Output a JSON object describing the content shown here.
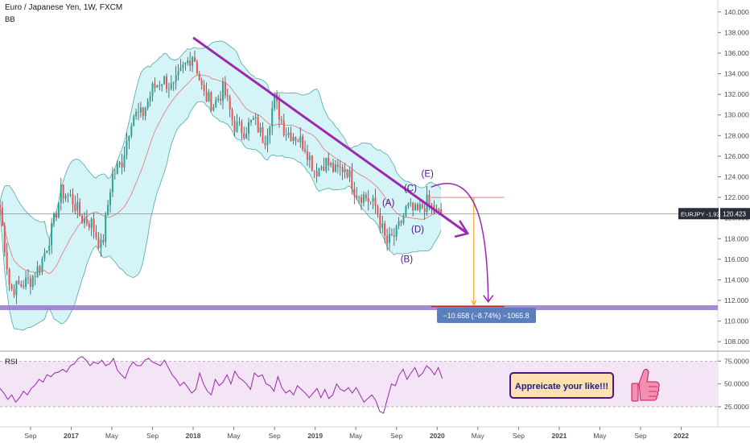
{
  "header": {
    "title": "Euro / Japanese Yen, 1W, FXCM",
    "indicator_bb": "BB",
    "indicator_rsi": "RSI"
  },
  "chart_data": [
    {
      "type": "candlestick",
      "title": "Euro / Japanese Yen, 1W, FXCM",
      "ylim": [
        107.0,
        141.0
      ],
      "y_ticks": [
        "140.000",
        "138.000",
        "136.000",
        "134.000",
        "132.000",
        "130.000",
        "128.000",
        "126.000",
        "124.000",
        "122.000",
        "120.000",
        "118.000",
        "116.000",
        "114.000",
        "112.000",
        "110.000",
        "108.000"
      ],
      "x_ticks": [
        "Sep",
        "2017",
        "May",
        "Sep",
        "2018",
        "May",
        "Sep",
        "2019",
        "May",
        "Sep",
        "2020",
        "May",
        "Sep",
        "2021",
        "May",
        "Sep",
        "2022"
      ],
      "close_series": [
        {
          "x": "2016-06",
          "y": 121.0
        },
        {
          "x": "2016-07",
          "y": 113.0
        },
        {
          "x": "2016-08",
          "y": 113.5
        },
        {
          "x": "2016-09",
          "y": 114.0
        },
        {
          "x": "2016-10",
          "y": 115.5
        },
        {
          "x": "2016-11",
          "y": 118.5
        },
        {
          "x": "2016-12",
          "y": 122.5
        },
        {
          "x": "2017-01",
          "y": 122.0
        },
        {
          "x": "2017-02",
          "y": 120.0
        },
        {
          "x": "2017-03",
          "y": 119.5
        },
        {
          "x": "2017-04",
          "y": 117.0
        },
        {
          "x": "2017-05",
          "y": 124.0
        },
        {
          "x": "2017-06",
          "y": 125.5
        },
        {
          "x": "2017-07",
          "y": 130.0
        },
        {
          "x": "2017-08",
          "y": 130.0
        },
        {
          "x": "2017-09",
          "y": 132.5
        },
        {
          "x": "2017-10",
          "y": 133.5
        },
        {
          "x": "2017-11",
          "y": 132.5
        },
        {
          "x": "2017-12",
          "y": 134.5
        },
        {
          "x": "2018-01",
          "y": 136.0
        },
        {
          "x": "2018-02",
          "y": 132.0
        },
        {
          "x": "2018-03",
          "y": 131.0
        },
        {
          "x": "2018-04",
          "y": 132.5
        },
        {
          "x": "2018-05",
          "y": 129.0
        },
        {
          "x": "2018-06",
          "y": 128.5
        },
        {
          "x": "2018-07",
          "y": 129.5
        },
        {
          "x": "2018-08",
          "y": 127.5
        },
        {
          "x": "2018-09",
          "y": 131.5
        },
        {
          "x": "2018-10",
          "y": 128.5
        },
        {
          "x": "2018-11",
          "y": 128.0
        },
        {
          "x": "2018-12",
          "y": 127.0
        },
        {
          "x": "2019-01",
          "y": 124.5
        },
        {
          "x": "2019-02",
          "y": 125.5
        },
        {
          "x": "2019-03",
          "y": 124.5
        },
        {
          "x": "2019-04",
          "y": 125.0
        },
        {
          "x": "2019-05",
          "y": 122.5
        },
        {
          "x": "2019-06",
          "y": 122.0
        },
        {
          "x": "2019-07",
          "y": 121.0
        },
        {
          "x": "2019-08",
          "y": 117.5
        },
        {
          "x": "2019-09",
          "y": 118.5
        },
        {
          "x": "2019-10",
          "y": 121.0
        },
        {
          "x": "2019-11",
          "y": 120.5
        },
        {
          "x": "2019-12",
          "y": 121.5
        },
        {
          "x": "2020-01",
          "y": 120.4
        }
      ],
      "bollinger_bands": {
        "period_label": "BB"
      },
      "price_label": {
        "text": "EURJPY -1.92%",
        "value": "120.423",
        "y": 120.423
      },
      "annotations": {
        "wave_labels": [
          "(A)",
          "(B)",
          "(C)",
          "(D)",
          "(E)"
        ],
        "measure_label": "−10.658 (−8.74%) −1065.8",
        "support_level": 111.3,
        "measure_top": 122.0,
        "measure_bottom": 111.4,
        "trendline": {
          "from": {
            "x": "2018-01",
            "y": 137.5
          },
          "to": {
            "x": "2020-04",
            "y": 118.5
          }
        }
      },
      "colors": {
        "up": "#26a69a",
        "down": "#ef5350",
        "trendline": "#9c27b0",
        "support": "#9575cd",
        "band_fill": "#b2ebf2",
        "band_line": "#4ea9a6",
        "basis": "#e57373",
        "measure_box": "#5b7fbd"
      }
    },
    {
      "type": "line",
      "title": "RSI",
      "ylim": [
        10,
        85
      ],
      "y_ticks": [
        "75.0000",
        "50.0000",
        "25.0000"
      ],
      "band": [
        25,
        75
      ],
      "values": [
        45,
        40,
        33,
        38,
        30,
        35,
        42,
        38,
        45,
        49,
        55,
        52,
        60,
        58,
        62,
        63,
        66,
        63,
        70,
        72,
        78,
        80,
        76,
        70,
        74,
        72,
        76,
        70,
        72,
        78,
        65,
        60,
        56,
        68,
        74,
        70,
        70,
        76,
        78,
        74,
        72,
        70,
        76,
        68,
        60,
        55,
        48,
        52,
        46,
        40,
        44,
        62,
        50,
        42,
        38,
        55,
        48,
        52,
        60,
        50,
        64,
        57,
        54,
        50,
        44,
        62,
        58,
        60,
        50,
        48,
        42,
        58,
        46,
        40,
        43,
        38,
        48,
        44,
        40,
        35,
        40,
        45,
        35,
        44,
        34,
        38,
        50,
        44,
        42,
        46,
        40,
        46,
        38,
        30,
        34,
        38,
        32,
        20,
        18,
        34,
        50,
        48,
        60,
        66,
        55,
        62,
        68,
        58,
        62,
        70,
        66,
        60,
        68,
        56
      ],
      "colors": {
        "line": "#9c27b0",
        "band_fill": "#f3e5f5",
        "band_edge": "#9e9e9e"
      }
    }
  ],
  "callout": {
    "text": "Appreicate your like!!!",
    "bg": "#ffe0b2",
    "border": "#4a148c",
    "text_color": "#1a237e",
    "thumb_icon": "thumbs-up-icon",
    "thumb_color": "#f48fb1"
  }
}
